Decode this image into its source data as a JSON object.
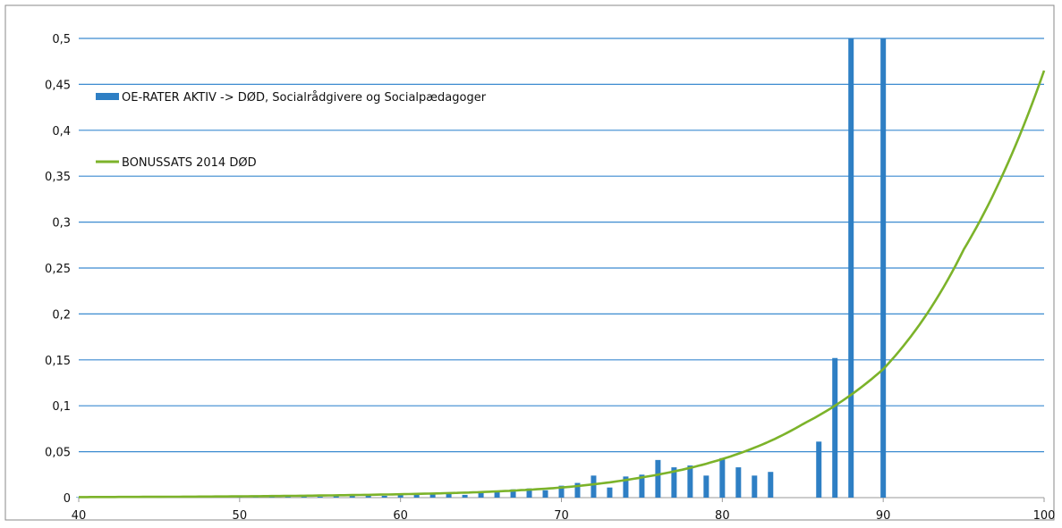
{
  "chart_data": {
    "type": "bar",
    "title": "",
    "xlabel": "",
    "ylabel": "",
    "xlim": [
      40,
      100
    ],
    "ylim": [
      0,
      0.5
    ],
    "x_ticks": [
      "40",
      "50",
      "60",
      "70",
      "80",
      "90",
      "100"
    ],
    "y_ticks": [
      "0",
      "0,05",
      "0,1",
      "0,15",
      "0,2",
      "0,25",
      "0,3",
      "0,35",
      "0,4",
      "0,45",
      "0,5"
    ],
    "grid": true,
    "legend_position": "top-left",
    "series": [
      {
        "name": "OE-RATER AKTIV -> DØD, Socialrådgivere og Socialpædagoger",
        "type": "bar",
        "color": "#2e7fc4",
        "x": [
          40,
          41,
          42,
          43,
          44,
          45,
          46,
          47,
          48,
          49,
          50,
          51,
          52,
          53,
          54,
          55,
          56,
          57,
          58,
          59,
          60,
          61,
          62,
          63,
          64,
          65,
          66,
          67,
          68,
          69,
          70,
          71,
          72,
          73,
          74,
          75,
          76,
          77,
          78,
          79,
          80,
          81,
          82,
          83,
          84,
          85,
          86,
          87,
          88,
          89,
          90
        ],
        "values": [
          0.0005,
          0.0005,
          0.0005,
          0.0005,
          0.0005,
          0.0005,
          0.0008,
          0.0008,
          0.001,
          0.001,
          0.001,
          0.001,
          0.001,
          0.001,
          0.002,
          0.001,
          0.002,
          0.002,
          0.003,
          0.002,
          0.003,
          0.003,
          0.004,
          0.004,
          0.003,
          0.005,
          0.007,
          0.009,
          0.01,
          0.008,
          0.013,
          0.016,
          0.024,
          0.011,
          0.023,
          0.025,
          0.041,
          0.033,
          0.035,
          0.024,
          0.043,
          0.033,
          0.024,
          0.028,
          0,
          0,
          0.061,
          0.152,
          0.5,
          0,
          0.5
        ]
      },
      {
        "name": "BONUSSATS 2014 DØD",
        "type": "line",
        "color": "#7cb32a",
        "x": [
          40,
          45,
          50,
          55,
          60,
          65,
          70,
          75,
          80,
          85,
          90,
          95,
          100
        ],
        "values": [
          0.0006,
          0.0009,
          0.0014,
          0.0023,
          0.0037,
          0.006,
          0.011,
          0.022,
          0.042,
          0.08,
          0.14,
          0.27,
          0.465
        ]
      }
    ]
  }
}
